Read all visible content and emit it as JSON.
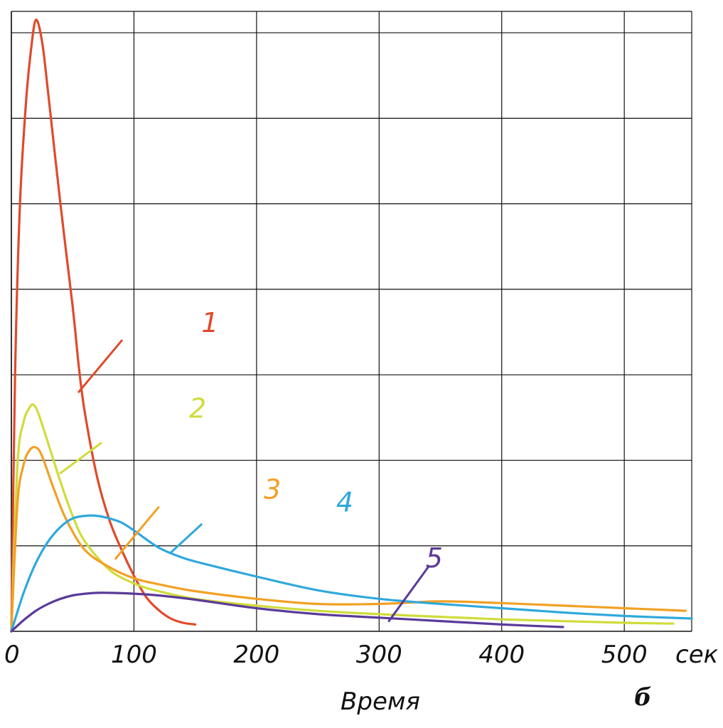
{
  "chart_data": {
    "type": "line",
    "xlabel": "Время",
    "x_unit": "сек",
    "panel_letter": "б",
    "xlim": [
      0,
      555
    ],
    "ylim": [
      0,
      7.25
    ],
    "x_ticks": [
      0,
      100,
      200,
      300,
      400,
      500
    ],
    "x_tick_labels": [
      "0",
      "100",
      "200",
      "300",
      "400",
      "500"
    ],
    "x_gridlines": [
      0,
      100,
      200,
      300,
      400,
      500
    ],
    "y_gridlines": [
      1,
      2,
      3,
      4,
      5,
      6,
      7
    ],
    "grid": true,
    "legend": "inline-labels",
    "series": [
      {
        "name": "1",
        "color": "#e04a2a",
        "x": [
          0,
          3,
          7,
          12,
          16,
          20,
          25,
          30,
          40,
          50,
          55,
          60,
          70,
          80,
          90,
          100,
          110,
          120,
          130,
          140,
          150
        ],
        "y": [
          0,
          3.0,
          5.0,
          6.2,
          6.8,
          7.15,
          6.9,
          6.3,
          5.0,
          3.8,
          3.1,
          2.55,
          1.8,
          1.3,
          0.95,
          0.65,
          0.4,
          0.25,
          0.15,
          0.1,
          0.08
        ],
        "label_at": [
          162,
          3.5
        ],
        "leader": [
          [
            55,
            2.8
          ],
          [
            90,
            3.4
          ]
        ]
      },
      {
        "name": "2",
        "color": "#cfdc3a",
        "x": [
          0,
          5,
          10,
          15,
          18,
          22,
          30,
          40,
          50,
          60,
          80,
          100,
          120,
          150,
          200,
          250,
          300,
          350,
          400,
          450,
          500,
          540
        ],
        "y": [
          0,
          1.95,
          2.45,
          2.62,
          2.65,
          2.55,
          2.2,
          1.75,
          1.35,
          1.05,
          0.72,
          0.56,
          0.47,
          0.38,
          0.3,
          0.24,
          0.2,
          0.17,
          0.14,
          0.12,
          0.1,
          0.09
        ],
        "label_at": [
          152,
          2.5
        ],
        "leader": [
          [
            40,
            1.85
          ],
          [
            73,
            2.2
          ]
        ]
      },
      {
        "name": "3",
        "color": "#f2a024",
        "x": [
          0,
          5,
          10,
          15,
          20,
          25,
          35,
          45,
          60,
          80,
          100,
          120,
          150,
          200,
          250,
          300,
          350,
          400,
          450,
          500,
          550
        ],
        "y": [
          0,
          1.5,
          1.95,
          2.12,
          2.15,
          2.05,
          1.65,
          1.3,
          0.95,
          0.75,
          0.62,
          0.55,
          0.47,
          0.38,
          0.32,
          0.32,
          0.35,
          0.33,
          0.3,
          0.27,
          0.24
        ],
        "label_at": [
          213,
          1.55
        ],
        "leader": [
          [
            85,
            0.85
          ],
          [
            120,
            1.45
          ]
        ]
      },
      {
        "name": "4",
        "color": "#2fa8dc",
        "x": [
          0,
          10,
          20,
          30,
          40,
          50,
          60,
          70,
          80,
          90,
          100,
          120,
          140,
          160,
          200,
          250,
          300,
          350,
          400,
          450,
          500,
          555
        ],
        "y": [
          0,
          0.45,
          0.8,
          1.05,
          1.22,
          1.32,
          1.35,
          1.35,
          1.32,
          1.27,
          1.18,
          0.98,
          0.86,
          0.78,
          0.64,
          0.48,
          0.38,
          0.32,
          0.27,
          0.22,
          0.18,
          0.15
        ],
        "label_at": [
          272,
          1.4
        ],
        "leader": [
          [
            130,
            0.92
          ],
          [
            155,
            1.25
          ]
        ]
      },
      {
        "name": "5",
        "color": "#5b3a99",
        "x": [
          0,
          10,
          20,
          30,
          40,
          50,
          60,
          70,
          80,
          100,
          120,
          150,
          200,
          250,
          300,
          350,
          400,
          450
        ],
        "y": [
          0,
          0.13,
          0.24,
          0.32,
          0.38,
          0.42,
          0.44,
          0.45,
          0.45,
          0.44,
          0.42,
          0.37,
          0.27,
          0.2,
          0.16,
          0.12,
          0.08,
          0.05
        ],
        "label_at": [
          345,
          0.75
        ],
        "leader": [
          [
            308,
            0.12
          ],
          [
            340,
            0.75
          ]
        ]
      }
    ]
  }
}
